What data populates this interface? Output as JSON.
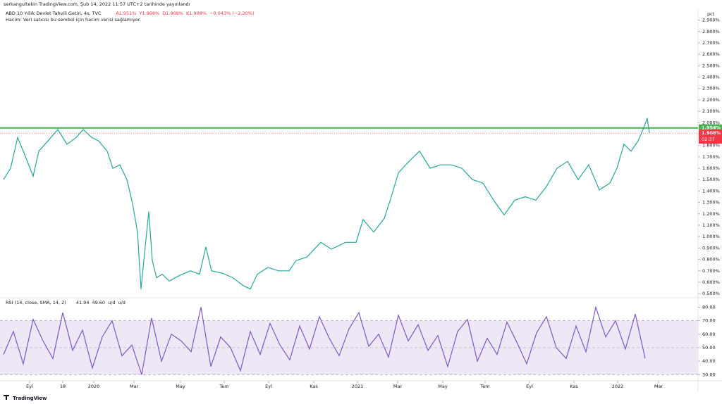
{
  "header": "serkangultekin TradingView.com, Şub 14, 2022 11:57 UTC+2 tarihinde yayınlandı",
  "footer": "TradingView",
  "chart_data": [
    {
      "type": "line",
      "title": "ABD 10 Yıllık Devlet Tahvili Getiri, 4s, TVC",
      "ohlc": [
        "A1.951%",
        "Y1.968%",
        "D1.908%",
        "K1.908%"
      ],
      "change": "−0.043% (−2.20%)",
      "subtitle": "Hacim: Veri satıcısı bu sembol için hacim verisi sağlamıyor.",
      "ylabel": "pct",
      "color": "#26a69a",
      "x": [
        5,
        15,
        25,
        35,
        47,
        55,
        68,
        82,
        95,
        108,
        118,
        130,
        140,
        152,
        160,
        170,
        180,
        188,
        195,
        200,
        205,
        211,
        216,
        222,
        230,
        240,
        255,
        270,
        283,
        292,
        300,
        315,
        330,
        345,
        355,
        365,
        380,
        395,
        410,
        420,
        435,
        455,
        470,
        490,
        505,
        515,
        530,
        545,
        555,
        565,
        580,
        595,
        610,
        625,
        640,
        655,
        670,
        685,
        700,
        715,
        730,
        745,
        760,
        775,
        790,
        805,
        820,
        835,
        850,
        865,
        875,
        885,
        895,
        905,
        912,
        918,
        921
      ],
      "values": [
        1.5,
        1.6,
        1.87,
        1.72,
        1.53,
        1.75,
        1.84,
        1.94,
        1.81,
        1.87,
        1.94,
        1.87,
        1.84,
        1.75,
        1.6,
        1.63,
        1.5,
        1.29,
        1.04,
        0.54,
        0.85,
        1.22,
        0.79,
        0.64,
        0.67,
        0.61,
        0.66,
        0.7,
        0.67,
        0.91,
        0.7,
        0.68,
        0.64,
        0.57,
        0.54,
        0.67,
        0.73,
        0.7,
        0.7,
        0.79,
        0.82,
        0.95,
        0.89,
        0.95,
        0.95,
        1.15,
        1.04,
        1.16,
        1.35,
        1.56,
        1.66,
        1.75,
        1.6,
        1.63,
        1.63,
        1.6,
        1.5,
        1.47,
        1.32,
        1.19,
        1.32,
        1.35,
        1.32,
        1.44,
        1.6,
        1.66,
        1.5,
        1.63,
        1.41,
        1.47,
        1.6,
        1.81,
        1.75,
        1.84,
        1.94,
        2.04,
        1.908
      ],
      "xlim": [
        0,
        990
      ],
      "ylim": [
        0.47,
        2.99
      ],
      "yticks": [
        {
          "value": 0.5,
          "label": "0.500%"
        },
        {
          "value": 0.6,
          "label": "0.600%"
        },
        {
          "value": 0.7,
          "label": "0.700%"
        },
        {
          "value": 0.8,
          "label": "0.800%"
        },
        {
          "value": 0.9,
          "label": "0.900%"
        },
        {
          "value": 1.0,
          "label": "1.000%"
        },
        {
          "value": 1.1,
          "label": "1.100%"
        },
        {
          "value": 1.2,
          "label": "1.200%"
        },
        {
          "value": 1.3,
          "label": "1.300%"
        },
        {
          "value": 1.4,
          "label": "1.400%"
        },
        {
          "value": 1.5,
          "label": "1.500%"
        },
        {
          "value": 1.6,
          "label": "1.600%"
        },
        {
          "value": 1.7,
          "label": "1.700%"
        },
        {
          "value": 1.8,
          "label": "1.800%"
        },
        {
          "value": 1.9,
          "label": "1.900%"
        },
        {
          "value": 2.0,
          "label": "2.000%"
        },
        {
          "value": 2.1,
          "label": "2.100%"
        },
        {
          "value": 2.2,
          "label": "2.200%"
        },
        {
          "value": 2.3,
          "label": "2.300%"
        },
        {
          "value": 2.4,
          "label": "2.400%"
        },
        {
          "value": 2.5,
          "label": "2.500%"
        },
        {
          "value": 2.6,
          "label": "2.600%"
        },
        {
          "value": 2.7,
          "label": "2.700%"
        },
        {
          "value": 2.8,
          "label": "2.800%"
        },
        {
          "value": 2.9,
          "label": "2.900%"
        }
      ],
      "hline": {
        "value": 1.954,
        "label": "1.954%",
        "color": "#4caf50"
      },
      "last": {
        "value": 1.908,
        "label": "1.908%",
        "countdown": "02:37",
        "color": "#f23645"
      }
    },
    {
      "type": "line",
      "title": "RSI (14, close, SMA, 14, 2)",
      "legend_values": [
        "41.94",
        "49.60",
        "u/d",
        "u/d"
      ],
      "color": "#7e57c2",
      "band_color": "#ede7f6",
      "x": [
        5,
        19,
        33,
        47,
        61,
        75,
        89,
        103,
        117,
        131,
        145,
        159,
        173,
        187,
        201,
        215,
        229,
        243,
        257,
        271,
        285,
        299,
        313,
        327,
        341,
        355,
        369,
        383,
        397,
        411,
        425,
        439,
        453,
        467,
        481,
        495,
        509,
        523,
        537,
        551,
        565,
        579,
        593,
        607,
        621,
        635,
        649,
        663,
        677,
        691,
        705,
        719,
        733,
        747,
        761,
        775,
        789,
        803,
        817,
        831,
        845,
        859,
        873,
        887,
        901,
        915
      ],
      "values": [
        45,
        62,
        38,
        71,
        55,
        42,
        76,
        48,
        63,
        35,
        58,
        70,
        44,
        52,
        30,
        72,
        40,
        60,
        55,
        47,
        80,
        36,
        58,
        50,
        33,
        62,
        45,
        68,
        52,
        41,
        66,
        49,
        73,
        57,
        44,
        64,
        76,
        51,
        60,
        43,
        74,
        55,
        67,
        48,
        59,
        36,
        62,
        71,
        40,
        57,
        45,
        69,
        54,
        38,
        61,
        73,
        50,
        42,
        66,
        47,
        80,
        58,
        70,
        49,
        75,
        42
      ],
      "levels": [
        30,
        50,
        70
      ],
      "xlim": [
        0,
        990
      ],
      "ylim": [
        26,
        86
      ],
      "yticks": [
        {
          "value": 30,
          "label": "30.00"
        },
        {
          "value": 40,
          "label": "40.00"
        },
        {
          "value": 50,
          "label": "50.00"
        },
        {
          "value": 60,
          "label": "60.00"
        },
        {
          "value": 70,
          "label": "70.00"
        },
        {
          "value": 80,
          "label": "80.00"
        }
      ],
      "xticks": [
        {
          "value": 42,
          "label": "Eyl"
        },
        {
          "value": 89,
          "label": "18"
        },
        {
          "value": 133,
          "label": "2020"
        },
        {
          "value": 190,
          "label": "Mar"
        },
        {
          "value": 256,
          "label": "May"
        },
        {
          "value": 318,
          "label": "Tem"
        },
        {
          "value": 381,
          "label": "Eyl"
        },
        {
          "value": 445,
          "label": "Kas"
        },
        {
          "value": 507,
          "label": "2021"
        },
        {
          "value": 564,
          "label": "Mar"
        },
        {
          "value": 628,
          "label": "May"
        },
        {
          "value": 688,
          "label": "Tem"
        },
        {
          "value": 751,
          "label": "Eyl"
        },
        {
          "value": 814,
          "label": "Kas"
        },
        {
          "value": 876,
          "label": "2022"
        },
        {
          "value": 934,
          "label": "Mar"
        }
      ]
    }
  ]
}
